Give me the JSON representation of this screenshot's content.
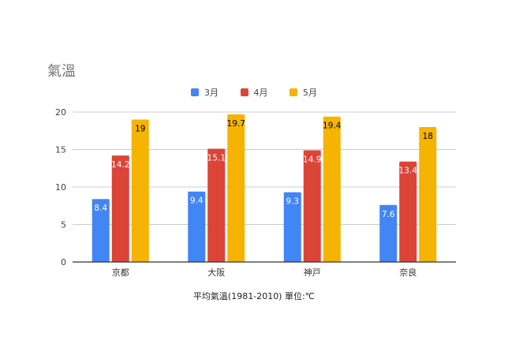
{
  "chart_data": {
    "type": "bar",
    "title": "氣溫",
    "xlabel": "平均氣溫(1981-2010) 單位:℃",
    "ylabel": "",
    "categories": [
      "京都",
      "大阪",
      "神戸",
      "奈良"
    ],
    "series": [
      {
        "name": "3月",
        "color": "#4285f4",
        "values": [
          8.4,
          9.4,
          9.3,
          7.6
        ],
        "label_color": "#ffffff"
      },
      {
        "name": "4月",
        "color": "#db4437",
        "values": [
          14.2,
          15.1,
          14.9,
          13.4
        ],
        "label_color": "#ffffff"
      },
      {
        "name": "5月",
        "color": "#f4b400",
        "values": [
          19,
          19.7,
          19.4,
          18
        ],
        "label_color": "#000000"
      }
    ],
    "ylim": [
      0,
      20
    ],
    "yticks": [
      0,
      5,
      10,
      15,
      20
    ],
    "grid": true,
    "legend_position": "top-center"
  }
}
